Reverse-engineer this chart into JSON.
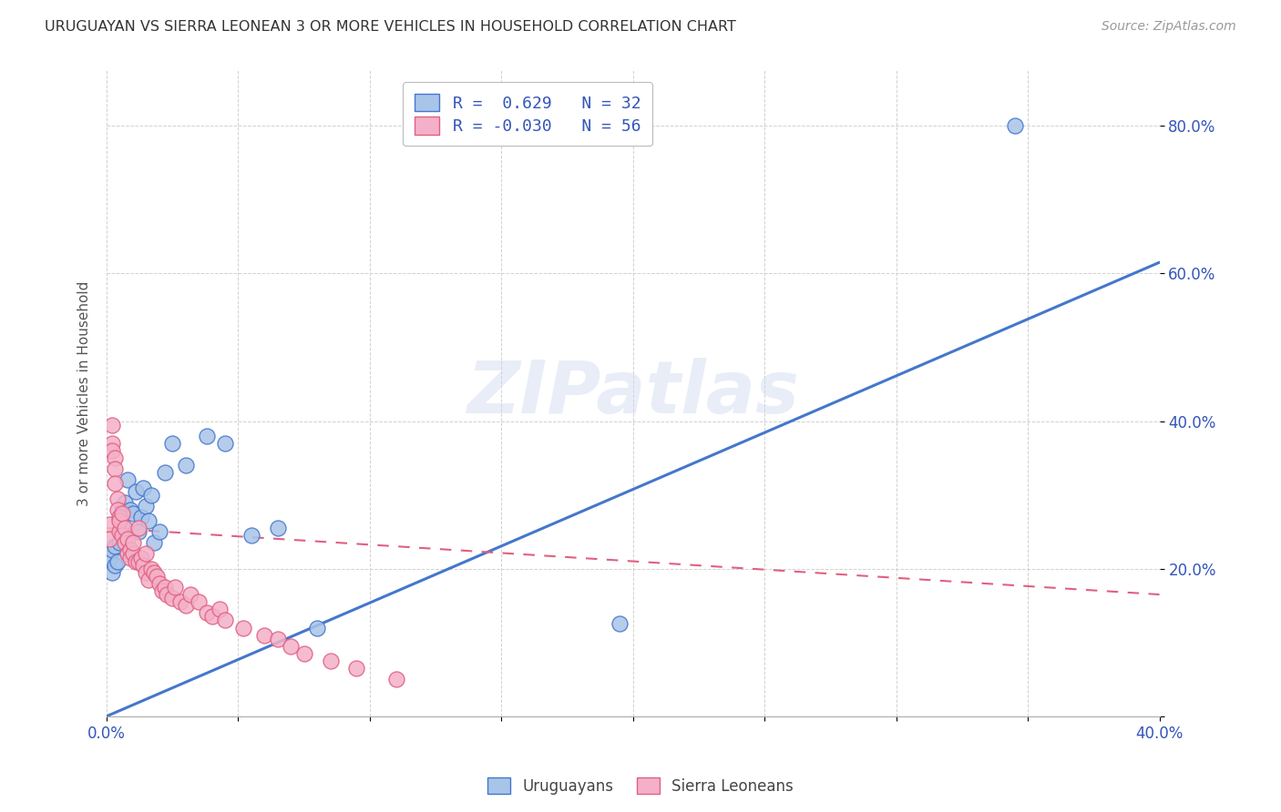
{
  "title": "URUGUAYAN VS SIERRA LEONEAN 3 OR MORE VEHICLES IN HOUSEHOLD CORRELATION CHART",
  "source": "Source: ZipAtlas.com",
  "ylabel": "3 or more Vehicles in Household",
  "xlim": [
    0.0,
    0.4
  ],
  "ylim": [
    0.0,
    0.875
  ],
  "yticks": [
    0.0,
    0.2,
    0.4,
    0.6,
    0.8
  ],
  "ytick_labels": [
    "",
    "20.0%",
    "40.0%",
    "60.0%",
    "80.0%"
  ],
  "xticks": [
    0.0,
    0.05,
    0.1,
    0.15,
    0.2,
    0.25,
    0.3,
    0.35,
    0.4
  ],
  "blue_R": 0.629,
  "blue_N": 32,
  "pink_R": -0.03,
  "pink_N": 56,
  "blue_color": "#a8c4e8",
  "pink_color": "#f4b0c8",
  "blue_line_color": "#4477cc",
  "pink_line_color": "#e06080",
  "legend_text_color": "#3355bb",
  "watermark": "ZIPatlas",
  "blue_line": [
    [
      0.0,
      0.0
    ],
    [
      0.4,
      0.615
    ]
  ],
  "pink_line": [
    [
      0.0,
      0.255
    ],
    [
      0.4,
      0.165
    ]
  ],
  "uruguayan_data_x": [
    0.001,
    0.002,
    0.002,
    0.003,
    0.003,
    0.004,
    0.005,
    0.006,
    0.006,
    0.007,
    0.008,
    0.009,
    0.01,
    0.011,
    0.012,
    0.013,
    0.014,
    0.015,
    0.016,
    0.017,
    0.018,
    0.02,
    0.022,
    0.025,
    0.03,
    0.038,
    0.045,
    0.055,
    0.065,
    0.08,
    0.195,
    0.345
  ],
  "uruguayan_data_y": [
    0.215,
    0.225,
    0.195,
    0.23,
    0.205,
    0.21,
    0.235,
    0.28,
    0.26,
    0.29,
    0.32,
    0.28,
    0.275,
    0.305,
    0.25,
    0.27,
    0.31,
    0.285,
    0.265,
    0.3,
    0.235,
    0.25,
    0.33,
    0.37,
    0.34,
    0.38,
    0.37,
    0.245,
    0.255,
    0.12,
    0.125,
    0.8
  ],
  "sierra_data_x": [
    0.001,
    0.001,
    0.002,
    0.002,
    0.002,
    0.003,
    0.003,
    0.003,
    0.004,
    0.004,
    0.005,
    0.005,
    0.005,
    0.006,
    0.006,
    0.007,
    0.007,
    0.008,
    0.008,
    0.009,
    0.009,
    0.01,
    0.01,
    0.011,
    0.012,
    0.012,
    0.013,
    0.014,
    0.015,
    0.015,
    0.016,
    0.017,
    0.018,
    0.019,
    0.02,
    0.021,
    0.022,
    0.023,
    0.025,
    0.026,
    0.028,
    0.03,
    0.032,
    0.035,
    0.038,
    0.04,
    0.043,
    0.045,
    0.052,
    0.06,
    0.065,
    0.07,
    0.075,
    0.085,
    0.095,
    0.11
  ],
  "sierra_data_y": [
    0.26,
    0.24,
    0.395,
    0.37,
    0.36,
    0.35,
    0.335,
    0.315,
    0.295,
    0.28,
    0.27,
    0.25,
    0.265,
    0.245,
    0.275,
    0.235,
    0.255,
    0.22,
    0.24,
    0.225,
    0.215,
    0.22,
    0.235,
    0.21,
    0.255,
    0.21,
    0.215,
    0.205,
    0.195,
    0.22,
    0.185,
    0.2,
    0.195,
    0.19,
    0.18,
    0.17,
    0.175,
    0.165,
    0.16,
    0.175,
    0.155,
    0.15,
    0.165,
    0.155,
    0.14,
    0.135,
    0.145,
    0.13,
    0.12,
    0.11,
    0.105,
    0.095,
    0.085,
    0.075,
    0.065,
    0.05
  ]
}
